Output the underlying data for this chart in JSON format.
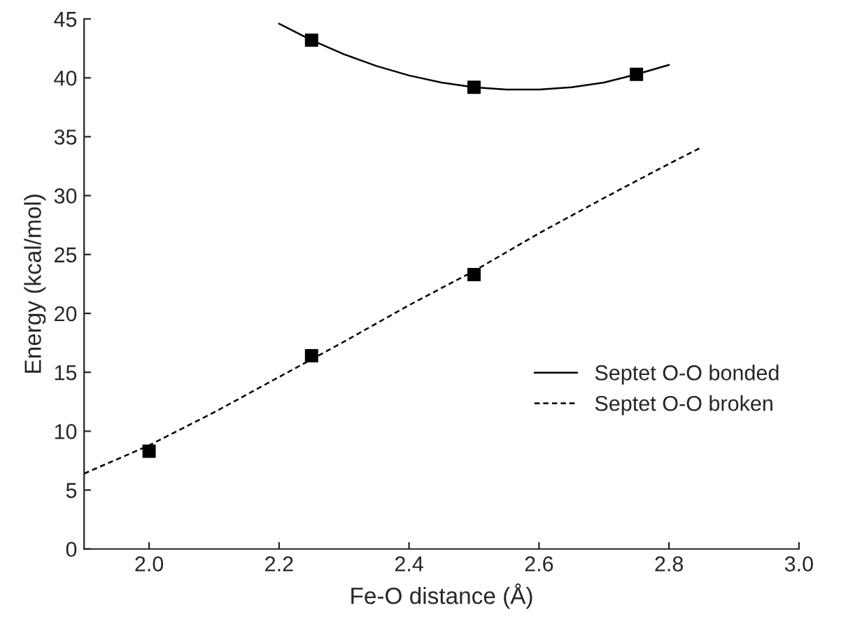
{
  "chart_data": {
    "type": "scatter",
    "xlabel": "Fe-O distance (Å)",
    "ylabel": "Energy (kcal/mol)",
    "xlim": [
      1.9,
      3.0
    ],
    "xticks": [
      {
        "value": 2.0,
        "label": "2.0"
      },
      {
        "value": 2.2,
        "label": "2.2"
      },
      {
        "value": 2.4,
        "label": "2.4"
      },
      {
        "value": 2.6,
        "label": "2.6"
      },
      {
        "value": 2.8,
        "label": "2.8"
      },
      {
        "value": 3.0,
        "label": "3.0"
      }
    ],
    "ylim": [
      0,
      45
    ],
    "yticks": [
      0,
      5,
      10,
      15,
      20,
      25,
      30,
      35,
      40,
      45
    ],
    "grid": false,
    "legend": "right",
    "marker": "square",
    "series": [
      {
        "color": "#000000",
        "x": [
          2.25,
          2.5,
          2.75
        ],
        "values": [
          43.2,
          39.2,
          40.3
        ]
      },
      {
        "color": "#000000",
        "x": [
          2.0,
          2.25,
          2.5
        ],
        "values": [
          8.3,
          16.4,
          23.3
        ]
      },
      {
        "type": "line",
        "name": "Septet O-O bonded",
        "color": "#000000",
        "line_style": "solid",
        "marker": "none",
        "x": [
          2.2,
          2.25,
          2.3,
          2.35,
          2.4,
          2.45,
          2.5,
          2.55,
          2.6,
          2.65,
          2.7,
          2.75,
          2.8
        ],
        "values": [
          44.6,
          43.2,
          42.0,
          41.0,
          40.2,
          39.6,
          39.2,
          39.0,
          39.0,
          39.2,
          39.6,
          40.3,
          41.1
        ]
      },
      {
        "type": "line",
        "name": "Septet O-O broken",
        "color": "#000000",
        "line_style": "dashed",
        "marker": "none",
        "x": [
          1.9,
          2.0,
          2.1,
          2.2,
          2.3,
          2.4,
          2.5,
          2.6,
          2.7,
          2.8,
          2.85
        ],
        "values": [
          6.4,
          8.8,
          11.6,
          14.6,
          17.6,
          20.7,
          23.6,
          26.8,
          29.8,
          32.7,
          34.1
        ]
      }
    ]
  }
}
